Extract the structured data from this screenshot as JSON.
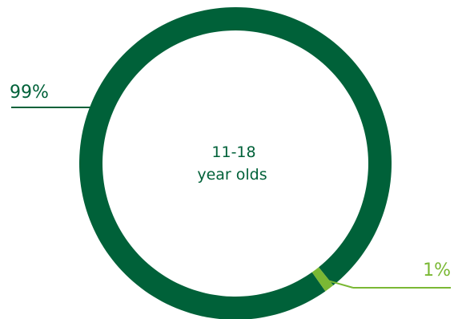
{
  "chart_data": {
    "type": "pie",
    "style": "donut",
    "center_label": [
      "11-18",
      "year olds"
    ],
    "slices": [
      {
        "label": "99%",
        "value": 99,
        "color": "#006139"
      },
      {
        "label": "1%",
        "value": 1,
        "color": "#7ab834"
      }
    ],
    "label_colors": {
      "99%": "#006139",
      "1%": "#7ab834"
    },
    "center_text_color": "#006139",
    "legend": "none"
  }
}
